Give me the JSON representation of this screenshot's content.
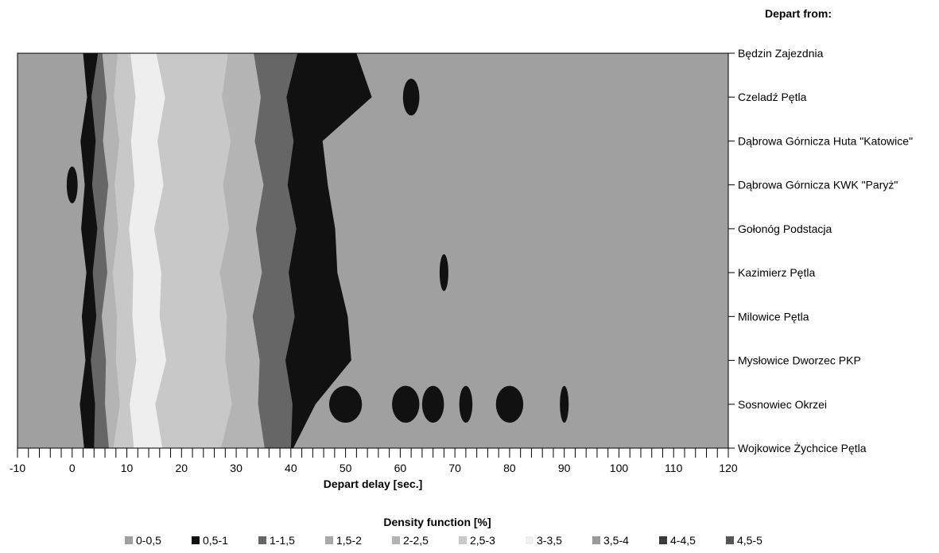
{
  "chart_data": {
    "type": "heatmap",
    "title": "",
    "xlabel": "Depart delay [sec.]",
    "ylabel": "Depart from:",
    "xlim": [
      -10,
      120
    ],
    "x_ticks": [
      -10,
      0,
      10,
      20,
      30,
      40,
      50,
      60,
      70,
      80,
      90,
      100,
      110,
      120
    ],
    "stations": [
      "Będzin Zajezdnia",
      "Czeladź Pętla",
      "Dąbrowa Górnicza Huta \"Katowice\"",
      "Dąbrowa Górnicza KWK \"Paryż\"",
      "Gołonóg Podstacja",
      "Kazimierz Pętla",
      "Milowice Pętla",
      "Mysłowice Dworzec PKP",
      "Sosnowiec Okrzei",
      "Wojkowice Żychcice Pętla"
    ],
    "legend_title": "Density function [%]",
    "legend_position": "bottom",
    "bands": [
      {
        "label": "0-0,5",
        "color": "#a0a0a0"
      },
      {
        "label": "0,5-1",
        "color": "#111111"
      },
      {
        "label": "1-1,5",
        "color": "#666666"
      },
      {
        "label": "1,5-2",
        "color": "#a8a8a8"
      },
      {
        "label": "2-2,5",
        "color": "#b4b4b4"
      },
      {
        "label": "2,5-3",
        "color": "#c8c8c8"
      },
      {
        "label": "3-3,5",
        "color": "#eeeeee"
      },
      {
        "label": "3,5-4",
        "color": "#9a9a9a"
      },
      {
        "label": "4-4,5",
        "color": "#3a3a3a"
      },
      {
        "label": "4,5-5",
        "color": "#555555"
      }
    ],
    "dark_peaks": [
      {
        "station": 1,
        "x": 62,
        "half_width": 1.5
      },
      {
        "station": 3,
        "x": 0,
        "half_width": 1
      },
      {
        "station": 5,
        "x": 68,
        "half_width": 0.8
      },
      {
        "station": 8,
        "x": 50,
        "half_width": 3
      },
      {
        "station": 8,
        "x": 61,
        "half_width": 2.5
      },
      {
        "station": 8,
        "x": 66,
        "half_width": 2
      },
      {
        "station": 8,
        "x": 72,
        "half_width": 1.2
      },
      {
        "station": 8,
        "x": 80,
        "half_width": 2.5
      },
      {
        "station": 8,
        "x": 90,
        "half_width": 0.8
      }
    ]
  }
}
